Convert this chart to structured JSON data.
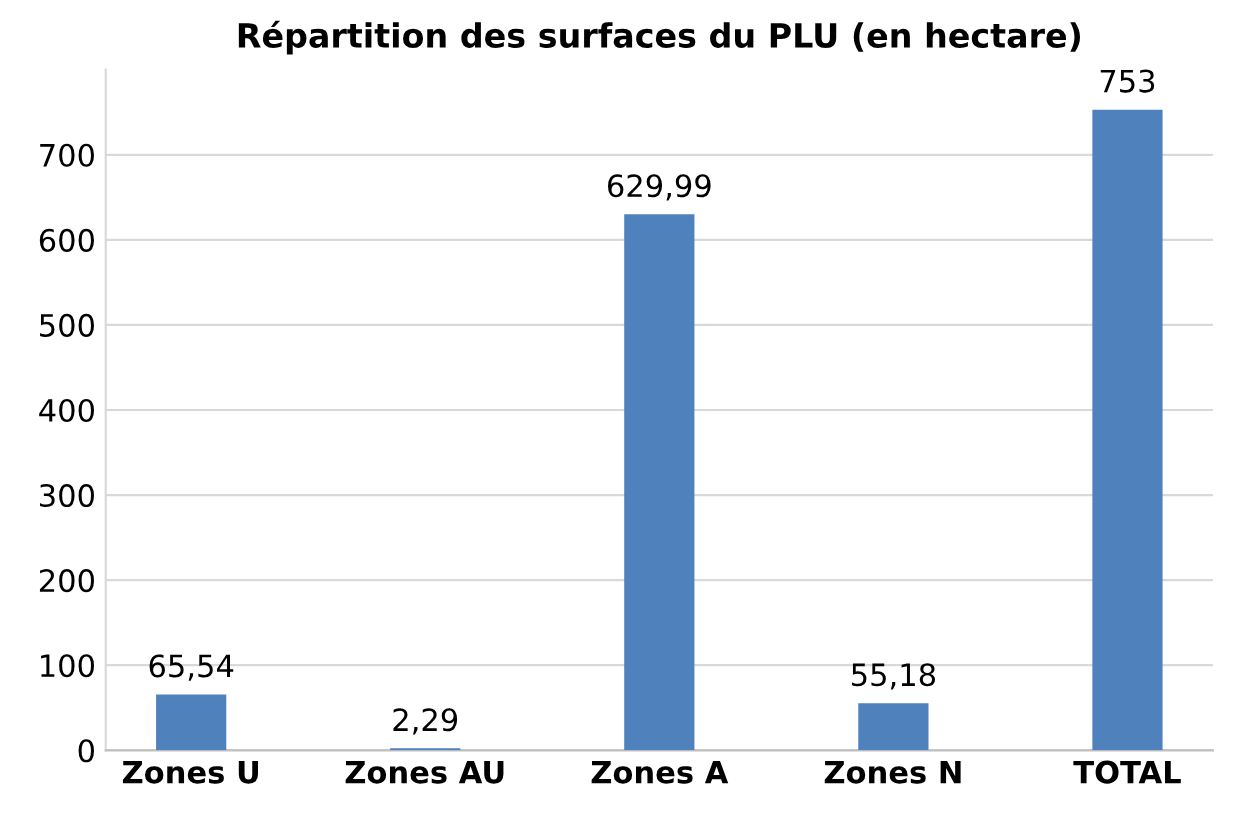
{
  "chart_data": {
    "type": "bar",
    "title": "Répartition des surfaces du PLU (en hectare)",
    "categories": [
      "Zones U",
      "Zones AU",
      "Zones A",
      "Zones N",
      "TOTAL"
    ],
    "values": [
      65.54,
      2.29,
      629.99,
      55.18,
      753
    ],
    "value_labels": [
      "65,54",
      "2,29",
      "629,99",
      "55,18",
      "753"
    ],
    "color": "#4f81bd",
    "ylim": [
      0,
      800
    ],
    "yticks": [
      0,
      100,
      200,
      300,
      400,
      500,
      600,
      700
    ],
    "grid": "y",
    "legend": false
  }
}
